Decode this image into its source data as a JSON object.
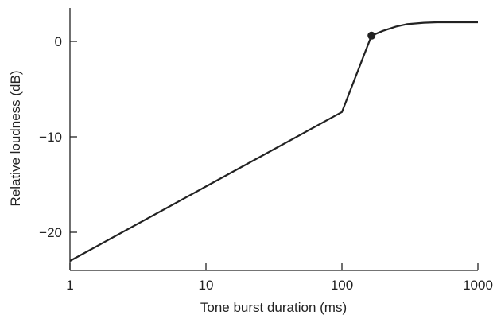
{
  "chart_data": {
    "type": "line",
    "xlabel": "Tone burst duration (ms)",
    "ylabel": "Relative loudness (dB)",
    "xscale": "log",
    "xlim": [
      1,
      1000
    ],
    "ylim": [
      -24,
      3.5
    ],
    "x_ticks": [
      {
        "value": 1,
        "label": "1"
      },
      {
        "value": 10,
        "label": "10"
      },
      {
        "value": 100,
        "label": "100"
      },
      {
        "value": 1000,
        "label": "1000"
      }
    ],
    "y_ticks": [
      {
        "value": 0,
        "label": "0"
      },
      {
        "value": -10,
        "label": "−10"
      },
      {
        "value": -20,
        "label": "−20"
      }
    ],
    "grid": false,
    "series": [
      {
        "color": "#222222",
        "x": [
          1,
          10,
          100,
          165,
          200,
          250,
          300,
          400,
          500,
          700,
          1000
        ],
        "y": [
          -23.0,
          -15.2,
          -7.4,
          0.6,
          1.1,
          1.55,
          1.8,
          1.95,
          2.0,
          2.0,
          2.0
        ]
      }
    ],
    "marker": {
      "x": 165,
      "y": 0.6,
      "color": "#222222"
    }
  }
}
